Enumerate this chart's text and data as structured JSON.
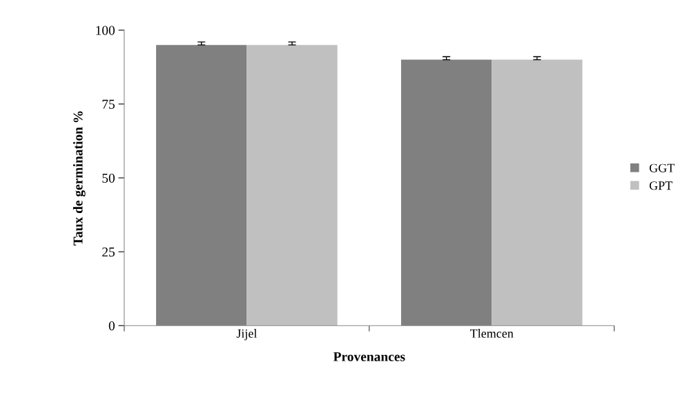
{
  "chart_data": {
    "type": "bar",
    "xlabel": "Provenances",
    "ylabel": "Taux de germination %",
    "categories": [
      "Jijel",
      "Tlemcen"
    ],
    "series": [
      {
        "name": "GGT",
        "color": "#808080",
        "values": [
          95,
          90
        ],
        "errors": [
          [
            95,
            96
          ],
          [
            90,
            91
          ]
        ]
      },
      {
        "name": "GPT",
        "color": "#c0c0c0",
        "values": [
          95,
          90
        ],
        "errors": [
          [
            95,
            96
          ],
          [
            90,
            91
          ]
        ]
      }
    ],
    "ylim": [
      0,
      100
    ],
    "yticks": [
      0,
      25,
      50,
      75,
      100
    ],
    "grid": false,
    "legend": "right"
  }
}
